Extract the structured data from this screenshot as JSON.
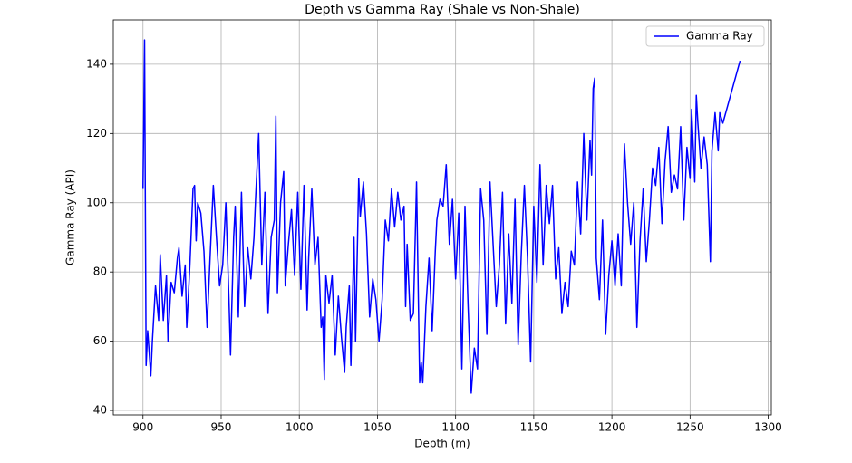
{
  "chart_data": {
    "type": "line",
    "title": "Depth vs Gamma Ray (Shale vs Non-Shale)",
    "x_label": "Depth (m)",
    "y_label": "Gamma Ray (API)",
    "x": [
      900,
      901,
      902,
      903,
      905,
      906,
      908,
      910,
      911,
      913,
      915,
      916,
      918,
      920,
      922,
      923,
      925,
      927,
      928,
      930,
      932,
      933,
      934,
      935,
      937,
      939,
      941,
      943,
      945,
      947,
      949,
      951,
      953,
      955,
      956,
      958,
      959,
      961,
      963,
      965,
      967,
      969,
      971,
      972,
      974,
      976,
      978,
      980,
      982,
      984,
      985,
      986,
      988,
      990,
      991,
      993,
      995,
      997,
      999,
      1001,
      1003,
      1005,
      1006,
      1008,
      1010,
      1012,
      1014,
      1015,
      1016,
      1017,
      1019,
      1021,
      1023,
      1025,
      1027,
      1029,
      1030,
      1032,
      1033,
      1035,
      1036,
      1038,
      1039,
      1041,
      1043,
      1045,
      1047,
      1049,
      1051,
      1053,
      1055,
      1057,
      1059,
      1061,
      1063,
      1065,
      1067,
      1068,
      1069,
      1071,
      1073,
      1075,
      1077,
      1078,
      1079,
      1081,
      1083,
      1085,
      1087,
      1088,
      1090,
      1092,
      1094,
      1096,
      1098,
      1100,
      1102,
      1104,
      1106,
      1108,
      1110,
      1112,
      1114,
      1116,
      1118,
      1120,
      1122,
      1124,
      1126,
      1128,
      1130,
      1132,
      1134,
      1136,
      1138,
      1140,
      1142,
      1144,
      1146,
      1148,
      1150,
      1152,
      1154,
      1156,
      1158,
      1160,
      1162,
      1164,
      1166,
      1168,
      1170,
      1172,
      1174,
      1176,
      1178,
      1180,
      1182,
      1184,
      1186,
      1187,
      1188,
      1189,
      1190,
      1192,
      1194,
      1196,
      1198,
      1200,
      1202,
      1204,
      1206,
      1208,
      1210,
      1212,
      1214,
      1216,
      1218,
      1220,
      1222,
      1224,
      1226,
      1228,
      1230,
      1232,
      1234,
      1236,
      1238,
      1240,
      1242,
      1244,
      1246,
      1248,
      1250,
      1251,
      1253,
      1254,
      1255,
      1257,
      1259,
      1261,
      1263,
      1264,
      1266,
      1268,
      1269,
      1271,
      1282
    ],
    "series": [
      {
        "name": "Gamma Ray",
        "color": "#0000ff",
        "values": [
          104,
          147,
          53,
          63,
          50,
          60,
          76,
          66,
          85,
          66,
          79,
          60,
          77,
          74,
          84,
          87,
          73,
          82,
          64,
          82,
          104,
          105,
          89,
          100,
          97,
          86,
          64,
          85,
          105,
          90,
          76,
          82,
          100,
          72,
          56,
          90,
          99,
          67,
          103,
          70,
          87,
          78,
          90,
          101,
          120,
          82,
          103,
          68,
          90,
          95,
          125,
          74,
          100,
          109,
          76,
          88,
          98,
          79,
          103,
          75,
          105,
          69,
          84,
          104,
          82,
          90,
          64,
          67,
          49,
          79,
          71,
          79,
          56,
          73,
          61,
          51,
          64,
          76,
          53,
          90,
          60,
          107,
          96,
          106,
          91,
          67,
          78,
          72,
          60,
          72,
          95,
          89,
          104,
          93,
          103,
          95,
          99,
          70,
          88,
          66,
          68,
          106,
          48,
          54,
          48,
          70,
          84,
          63,
          86,
          95,
          101,
          99,
          111,
          88,
          101,
          78,
          97,
          52,
          99,
          70,
          45,
          58,
          52,
          104,
          95,
          62,
          106,
          88,
          70,
          82,
          103,
          65,
          91,
          71,
          101,
          59,
          85,
          105,
          84,
          54,
          99,
          77,
          111,
          82,
          105,
          94,
          105,
          78,
          87,
          68,
          77,
          70,
          86,
          82,
          106,
          91,
          120,
          95,
          118,
          108,
          133,
          136,
          84,
          72,
          95,
          62,
          79,
          89,
          76,
          91,
          76,
          117,
          100,
          88,
          100,
          64,
          89,
          104,
          83,
          95,
          110,
          105,
          116,
          94,
          112,
          122,
          103,
          108,
          104,
          122,
          95,
          116,
          107,
          127,
          106,
          131,
          123,
          110,
          119,
          111,
          83,
          115,
          126,
          115,
          126,
          123,
          141
        ]
      }
    ],
    "xlim": [
      881,
      1302
    ],
    "ylim": [
      38.7,
      152.8
    ],
    "xticks": [
      900,
      950,
      1000,
      1050,
      1100,
      1150,
      1200,
      1250,
      1300
    ],
    "yticks": [
      40,
      60,
      80,
      100,
      120,
      140
    ],
    "grid": true,
    "legend": "upper right"
  }
}
